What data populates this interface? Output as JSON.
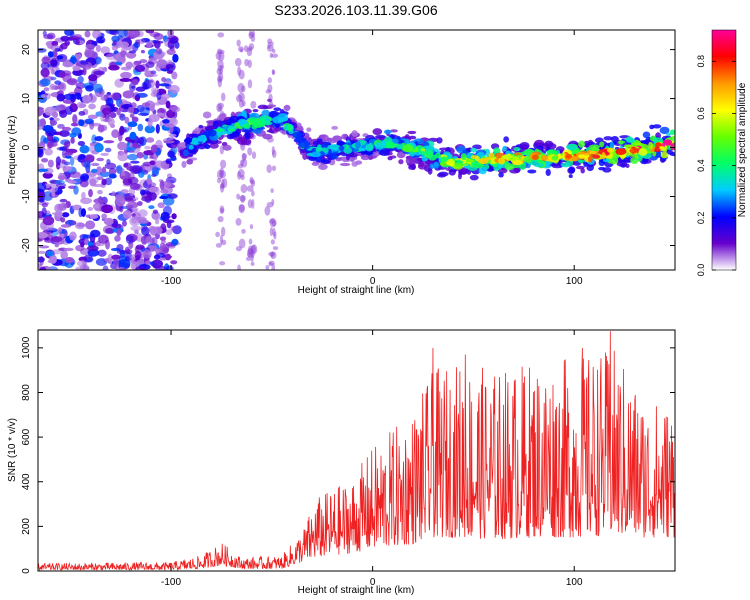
{
  "title": "S233.2026.103.11.39.G06",
  "chart_data": [
    {
      "type": "heatmap",
      "xlabel": "Height of straight line (km)",
      "ylabel": "Frequency (Hz)",
      "xlim": [
        -166,
        150
      ],
      "ylim": [
        -25,
        24
      ],
      "xticks": [
        -100,
        0,
        100
      ],
      "yticks": [
        -20,
        -10,
        0,
        10,
        20
      ],
      "colorbar": {
        "label": "Normalized spectral amplitude",
        "range": [
          0,
          0.92
        ],
        "ticks": [
          0.0,
          0.2,
          0.4,
          0.6,
          0.8
        ],
        "colormap": [
          "#ffffff",
          "#6600cc",
          "#0000ff",
          "#00ccff",
          "#00ff66",
          "#66ff00",
          "#ffff00",
          "#ff9900",
          "#ff0000",
          "#ff0099"
        ]
      },
      "ridge": {
        "description": "dominant frequency trace",
        "points": [
          {
            "x": -95,
            "freq": -1,
            "amp": 0.3
          },
          {
            "x": -80,
            "freq": 3,
            "amp": 0.35
          },
          {
            "x": -60,
            "freq": 5,
            "amp": 0.5
          },
          {
            "x": -45,
            "freq": 6,
            "amp": 0.4
          },
          {
            "x": -30,
            "freq": -1,
            "amp": 0.35
          },
          {
            "x": -10,
            "freq": 0,
            "amp": 0.35
          },
          {
            "x": 10,
            "freq": 1,
            "amp": 0.45
          },
          {
            "x": 40,
            "freq": -3,
            "amp": 0.6
          },
          {
            "x": 70,
            "freq": -2,
            "amp": 0.75
          },
          {
            "x": 90,
            "freq": -2,
            "amp": 0.7
          },
          {
            "x": 120,
            "freq": -1,
            "amp": 0.8
          },
          {
            "x": 150,
            "freq": 1,
            "amp": 0.9
          }
        ]
      },
      "noise_region": {
        "x_from": -166,
        "x_to": -97
      }
    },
    {
      "type": "line",
      "xlabel": "Height of straight line (km)",
      "ylabel": "SNR (10 * v/v)",
      "xlim": [
        -166,
        150
      ],
      "ylim": [
        0,
        1080
      ],
      "xticks": [
        -100,
        0,
        100
      ],
      "yticks": [
        0,
        200,
        400,
        600,
        800,
        1000
      ],
      "color": "#ee2222",
      "envelope": [
        {
          "x": -166,
          "low": 5,
          "high": 35
        },
        {
          "x": -100,
          "low": 5,
          "high": 40
        },
        {
          "x": -85,
          "low": 10,
          "high": 70
        },
        {
          "x": -75,
          "low": 25,
          "high": 130
        },
        {
          "x": -65,
          "low": 10,
          "high": 60
        },
        {
          "x": -45,
          "low": 10,
          "high": 70
        },
        {
          "x": -35,
          "low": 40,
          "high": 180
        },
        {
          "x": -28,
          "low": 60,
          "high": 330
        },
        {
          "x": -10,
          "low": 80,
          "high": 420
        },
        {
          "x": 0,
          "low": 100,
          "high": 560
        },
        {
          "x": 20,
          "low": 120,
          "high": 720
        },
        {
          "x": 30,
          "low": 150,
          "high": 900
        },
        {
          "x": 45,
          "low": 150,
          "high": 950
        },
        {
          "x": 60,
          "low": 140,
          "high": 900
        },
        {
          "x": 80,
          "low": 150,
          "high": 950
        },
        {
          "x": 100,
          "low": 150,
          "high": 960
        },
        {
          "x": 120,
          "low": 160,
          "high": 1000
        },
        {
          "x": 135,
          "low": 150,
          "high": 780
        },
        {
          "x": 150,
          "low": 150,
          "high": 750
        }
      ],
      "peaks": [
        {
          "x": 30,
          "y": 1000
        },
        {
          "x": 46,
          "y": 970
        },
        {
          "x": 104,
          "y": 1000
        },
        {
          "x": 118,
          "y": 1075
        }
      ]
    }
  ]
}
